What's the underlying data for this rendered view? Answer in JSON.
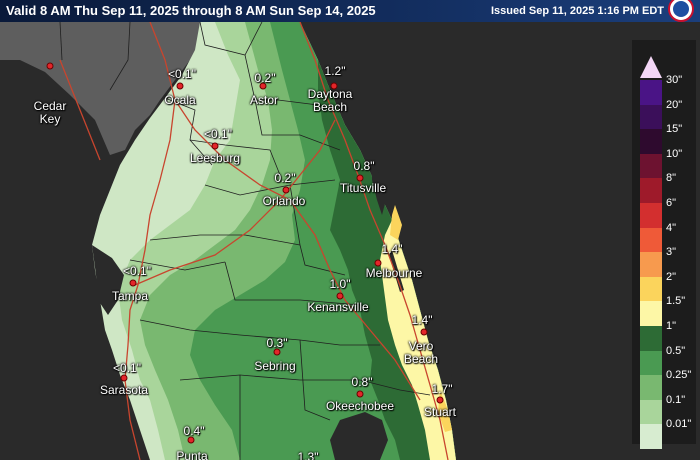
{
  "header": {
    "valid_text": "Valid 8 AM Thu Sep 11, 2025 through 8 AM Sun Sep 14, 2025",
    "issued_text": "Issued Sep 11, 2025 1:16 PM EDT",
    "logo_icon": "noaa-logo-icon"
  },
  "colors": {
    "water": "#2a2a2a",
    "land_gray": "#5e5e5e",
    "county_line": "#1f1f1f",
    "road": "#c8452e",
    "marker": "#e3262a"
  },
  "cities": [
    {
      "name": "Cedar\nKey",
      "value": ""
    },
    {
      "name": "Ocala",
      "value": "<0.1\""
    },
    {
      "name": "Astor",
      "value": "0.2\""
    },
    {
      "name": "Daytona\nBeach",
      "value": "1.2\""
    },
    {
      "name": "Leesburg",
      "value": "<0.1\""
    },
    {
      "name": "Orlando",
      "value": "0.2\""
    },
    {
      "name": "Titusville",
      "value": "0.8\""
    },
    {
      "name": "Melbourne",
      "value": "1.4\""
    },
    {
      "name": "Tampa",
      "value": "<0.1\""
    },
    {
      "name": "Kenansville",
      "value": "1.0\""
    },
    {
      "name": "Vero\nBeach",
      "value": "1.4\""
    },
    {
      "name": "Sarasota",
      "value": "<0.1\""
    },
    {
      "name": "Sebring",
      "value": "0.3\""
    },
    {
      "name": "Okeechobee",
      "value": "0.8\""
    },
    {
      "name": "Stuart",
      "value": "1.7\""
    },
    {
      "name": "Punta",
      "value": "0.4\""
    },
    {
      "name": "",
      "value": "1.3\""
    }
  ],
  "legend": [
    {
      "label": "30\"",
      "color": "#4a1486"
    },
    {
      "label": "20\"",
      "color": "#3b0f5a"
    },
    {
      "label": "15\"",
      "color": "#2e0a2e"
    },
    {
      "label": "10\"",
      "color": "#6d1230"
    },
    {
      "label": "8\"",
      "color": "#9e1a2a"
    },
    {
      "label": "6\"",
      "color": "#d32f2f"
    },
    {
      "label": "4\"",
      "color": "#ef5a38"
    },
    {
      "label": "3\"",
      "color": "#f79a4e"
    },
    {
      "label": "2\"",
      "color": "#fbd45c"
    },
    {
      "label": "1.5\"",
      "color": "#fdf7a6"
    },
    {
      "label": "1\"",
      "color": "#2d6b35"
    },
    {
      "label": "0.5\"",
      "color": "#4a9a52"
    },
    {
      "label": "0.25\"",
      "color": "#79b870"
    },
    {
      "label": "0.1\"",
      "color": "#a9d59b"
    },
    {
      "label": "0.01\"",
      "color": "#d7ecd0"
    }
  ]
}
